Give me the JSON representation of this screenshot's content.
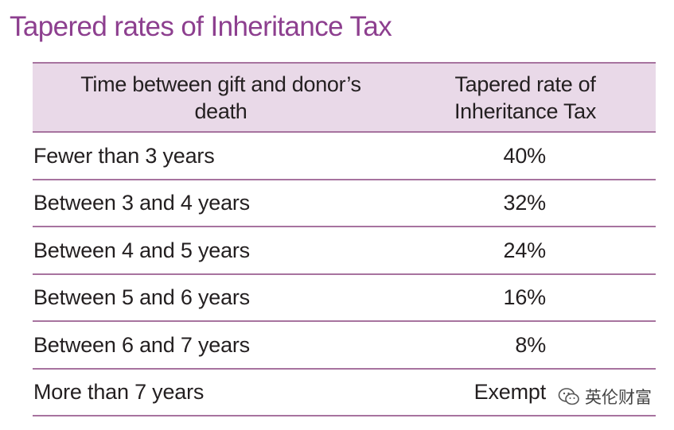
{
  "title": "Tapered rates of Inheritance Tax",
  "table": {
    "headers": {
      "time": "Time between gift and donor’s\ndeath",
      "rate": "Tapered rate of\nInheritance Tax"
    },
    "rows": [
      {
        "time": "Fewer than 3 years",
        "rate": "40%"
      },
      {
        "time": "Between 3 and 4 years",
        "rate": "32%"
      },
      {
        "time": "Between 4 and 5 years",
        "rate": "24%"
      },
      {
        "time": "Between 5 and 6 years",
        "rate": "16%"
      },
      {
        "time": "Between 6 and 7 years",
        "rate": "8%"
      },
      {
        "time": "More than 7 years",
        "rate": "Exempt"
      }
    ]
  },
  "watermark": {
    "label": "英伦财富",
    "icon": "wechat-icon"
  },
  "colors": {
    "title": "#8d3f8f",
    "header_bg": "#e9d9e8",
    "rule": "#a7739f",
    "text": "#231f20"
  }
}
